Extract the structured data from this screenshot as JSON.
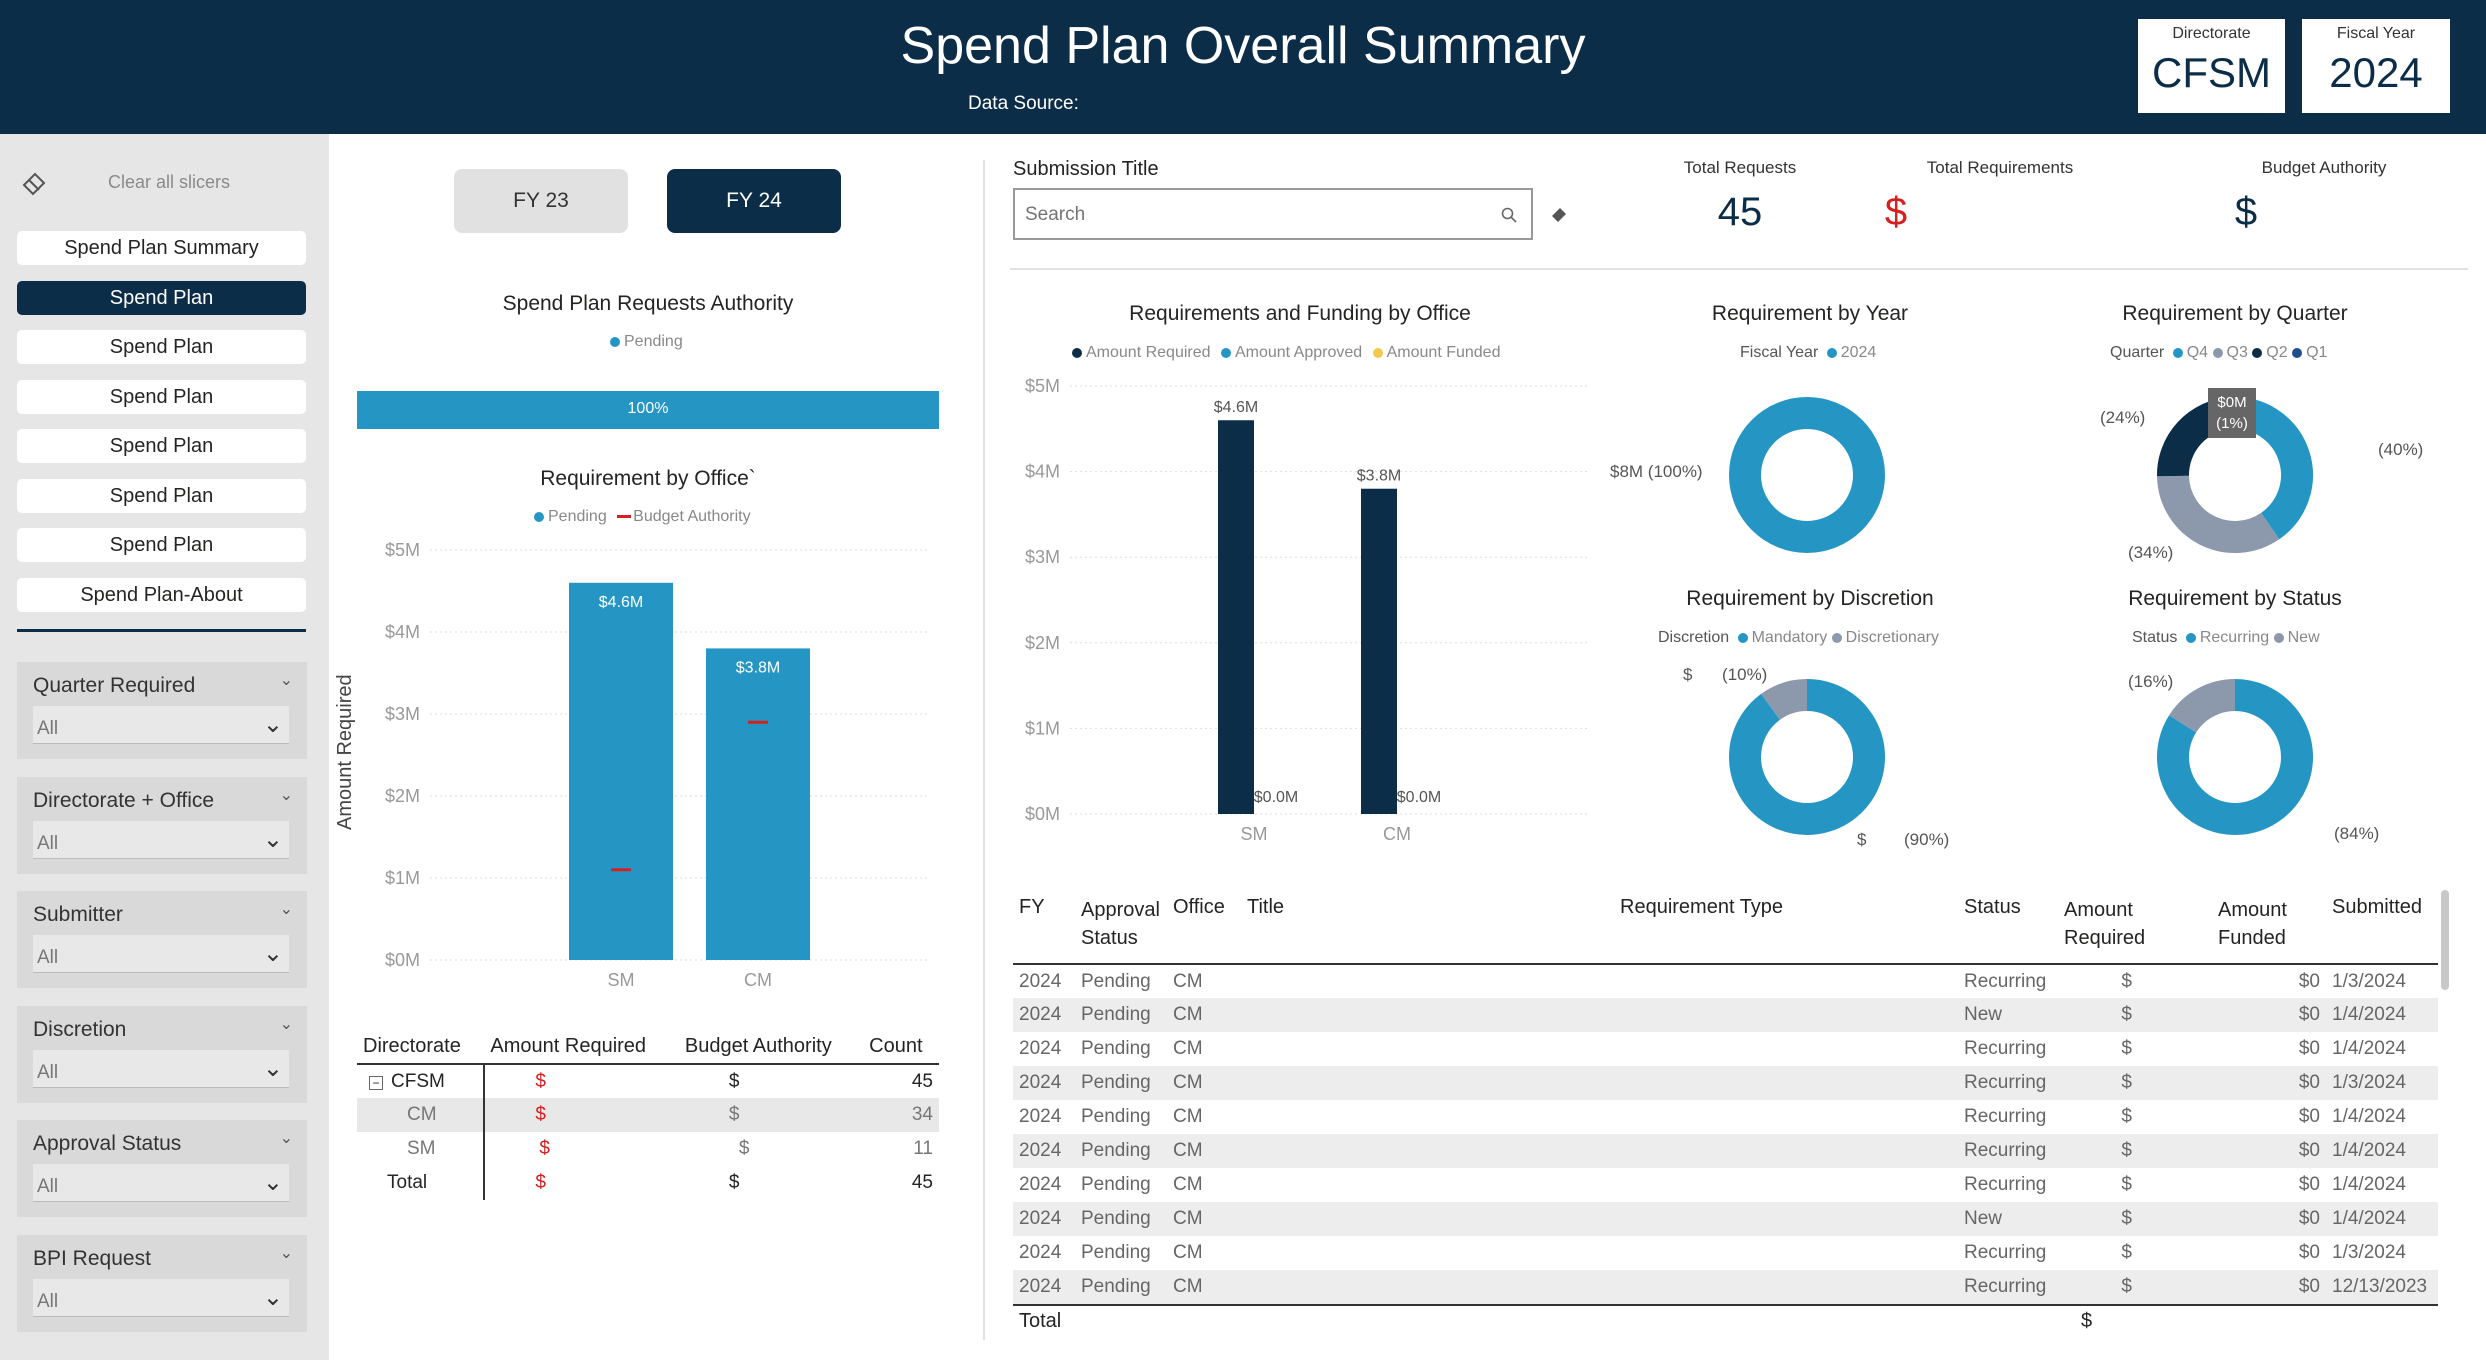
{
  "header": {
    "title": "Spend Plan Overall Summary",
    "data_source": "Data Source:",
    "directorate_label": "Directorate",
    "directorate_value": "CFSM",
    "fy_label": "Fiscal Year",
    "fy_value": "2024"
  },
  "sidebar": {
    "clear_label": "Clear all slicers",
    "nav": [
      "Spend Plan Summary",
      "Spend Plan",
      "Spend Plan",
      "Spend Plan",
      "Spend Plan",
      "Spend Plan",
      "Spend Plan",
      "Spend Plan-About"
    ],
    "active_index": 1,
    "slicers": [
      {
        "title": "Quarter Required",
        "value": "All"
      },
      {
        "title": "Directorate + Office",
        "value": "All"
      },
      {
        "title": "Submitter",
        "value": "All"
      },
      {
        "title": "Discretion",
        "value": "All"
      },
      {
        "title": "Approval Status",
        "value": "All"
      },
      {
        "title": "BPI Request",
        "value": "All"
      }
    ]
  },
  "fy_buttons": [
    "FY 23",
    "FY 24"
  ],
  "requests_authority": {
    "title": "Spend Plan Requests Authority",
    "legend": "Pending",
    "bar_label": "100%",
    "value": 1.0
  },
  "req_by_office": {
    "title": "Requirement by Office`",
    "legend_pending": "Pending",
    "legend_budget": "Budget Authority",
    "ylabel": "Amount Required"
  },
  "submission": {
    "title": "Submission Title",
    "placeholder": "Search"
  },
  "kpis": {
    "requests_label": "Total Requests",
    "requests_value": "45",
    "requirements_label": "Total Requirements",
    "requirements_value": "$",
    "budget_label": "Budget Authority",
    "budget_value": "$"
  },
  "funding": {
    "title": "Requirements and Funding by Office",
    "legend": [
      "Amount Required",
      "Amount Approved",
      "Amount Funded"
    ]
  },
  "donuts": {
    "year": {
      "title": "Requirement by Year",
      "legend_prefix": "Fiscal Year",
      "legend": [
        "2024"
      ],
      "labels": [
        "$8M (100%)"
      ]
    },
    "quarter": {
      "title": "Requirement by Quarter",
      "legend_prefix": "Quarter",
      "legend": [
        "Q4",
        "Q3",
        "Q2",
        "Q1"
      ],
      "labels": [
        "(24%)",
        "(40%)",
        "(34%)",
        "$0M",
        "(1%)"
      ]
    },
    "discretion": {
      "title": "Requirement by Discretion",
      "legend_prefix": "Discretion",
      "legend": [
        "Mandatory",
        "Discretionary"
      ],
      "labels": [
        "$",
        "(10%)",
        "$",
        "(90%)"
      ]
    },
    "status": {
      "title": "Requirement by Status",
      "legend_prefix": "Status",
      "legend": [
        "Recurring",
        "New"
      ],
      "labels": [
        "(16%)",
        "(84%)"
      ]
    }
  },
  "matrix": {
    "headers": [
      "Directorate",
      "Amount Required",
      "Budget Authority",
      "Count"
    ],
    "rows": [
      {
        "name": "CFSM",
        "req": "$",
        "ba": "$",
        "count": "45"
      },
      {
        "name": "CM",
        "req": "$",
        "ba": "$",
        "count": "34"
      },
      {
        "name": "SM",
        "req": "$",
        "ba": "$",
        "count": "11"
      },
      {
        "name": "Total",
        "req": "$",
        "ba": "$",
        "count": "45"
      }
    ]
  },
  "table": {
    "headers": [
      "FY",
      "Approval Status",
      "Office",
      "Title",
      "Requirement Type",
      "Status",
      "Amount Required",
      "Amount Funded",
      "Submitted"
    ],
    "rows": [
      {
        "fy": "2024",
        "approval": "Pending",
        "office": "CM",
        "status": "Recurring",
        "req": "$",
        "funded": "$0",
        "submitted": "1/3/2024"
      },
      {
        "fy": "2024",
        "approval": "Pending",
        "office": "CM",
        "status": "New",
        "req": "$",
        "funded": "$0",
        "submitted": "1/4/2024"
      },
      {
        "fy": "2024",
        "approval": "Pending",
        "office": "CM",
        "status": "Recurring",
        "req": "$",
        "funded": "$0",
        "submitted": "1/4/2024"
      },
      {
        "fy": "2024",
        "approval": "Pending",
        "office": "CM",
        "status": "Recurring",
        "req": "$",
        "funded": "$0",
        "submitted": "1/3/2024"
      },
      {
        "fy": "2024",
        "approval": "Pending",
        "office": "CM",
        "status": "Recurring",
        "req": "$",
        "funded": "$0",
        "submitted": "1/4/2024"
      },
      {
        "fy": "2024",
        "approval": "Pending",
        "office": "CM",
        "status": "Recurring",
        "req": "$",
        "funded": "$0",
        "submitted": "1/4/2024"
      },
      {
        "fy": "2024",
        "approval": "Pending",
        "office": "CM",
        "status": "Recurring",
        "req": "$",
        "funded": "$0",
        "submitted": "1/4/2024"
      },
      {
        "fy": "2024",
        "approval": "Pending",
        "office": "CM",
        "status": "New",
        "req": "$",
        "funded": "$0",
        "submitted": "1/4/2024"
      },
      {
        "fy": "2024",
        "approval": "Pending",
        "office": "CM",
        "status": "Recurring",
        "req": "$",
        "funded": "$0",
        "submitted": "1/3/2024"
      },
      {
        "fy": "2024",
        "approval": "Pending",
        "office": "CM",
        "status": "Recurring",
        "req": "$",
        "funded": "$0",
        "submitted": "12/13/2023"
      }
    ],
    "total_label": "Total",
    "total_req": "$"
  },
  "colors": {
    "navy": "#0c2d48",
    "blue": "#2596c4",
    "gray": "#8c99ad",
    "red": "#d32020",
    "yellow": "#f2c94c"
  },
  "chart_data": [
    {
      "type": "bar",
      "title": "Requirement by Office`",
      "categories": [
        "SM",
        "CM"
      ],
      "series": [
        {
          "name": "Pending",
          "values": [
            4.6,
            3.8
          ]
        },
        {
          "name": "Budget Authority",
          "values": [
            1.1,
            2.9
          ]
        }
      ],
      "data_labels": [
        "$4.6M",
        "$3.8M"
      ],
      "ylabel": "Amount Required",
      "ylim": [
        0,
        5
      ],
      "yticks": [
        "$0M",
        "$1M",
        "$2M",
        "$3M",
        "$4M",
        "$5M"
      ]
    },
    {
      "type": "bar",
      "title": "Requirements and Funding by Office",
      "categories": [
        "SM",
        "CM"
      ],
      "series": [
        {
          "name": "Amount Required",
          "values": [
            4.6,
            3.8
          ]
        },
        {
          "name": "Amount Approved",
          "values": [
            0,
            0
          ]
        },
        {
          "name": "Amount Funded",
          "values": [
            0,
            0
          ]
        }
      ],
      "data_labels": [
        "$4.6M",
        "$3.8M",
        "$0.0M",
        "$0.0M"
      ],
      "ylim": [
        0,
        5
      ],
      "yticks": [
        "$0M",
        "$1M",
        "$2M",
        "$3M",
        "$4M",
        "$5M"
      ]
    },
    {
      "type": "pie",
      "title": "Requirement by Year",
      "categories": [
        "2024"
      ],
      "values": [
        100
      ]
    },
    {
      "type": "pie",
      "title": "Requirement by Quarter",
      "categories": [
        "Q4",
        "Q3",
        "Q2",
        "Q1"
      ],
      "values": [
        40,
        34,
        24,
        1
      ]
    },
    {
      "type": "pie",
      "title": "Requirement by Discretion",
      "categories": [
        "Mandatory",
        "Discretionary"
      ],
      "values": [
        90,
        10
      ]
    },
    {
      "type": "pie",
      "title": "Requirement by Status",
      "categories": [
        "Recurring",
        "New"
      ],
      "values": [
        84,
        16
      ]
    }
  ]
}
